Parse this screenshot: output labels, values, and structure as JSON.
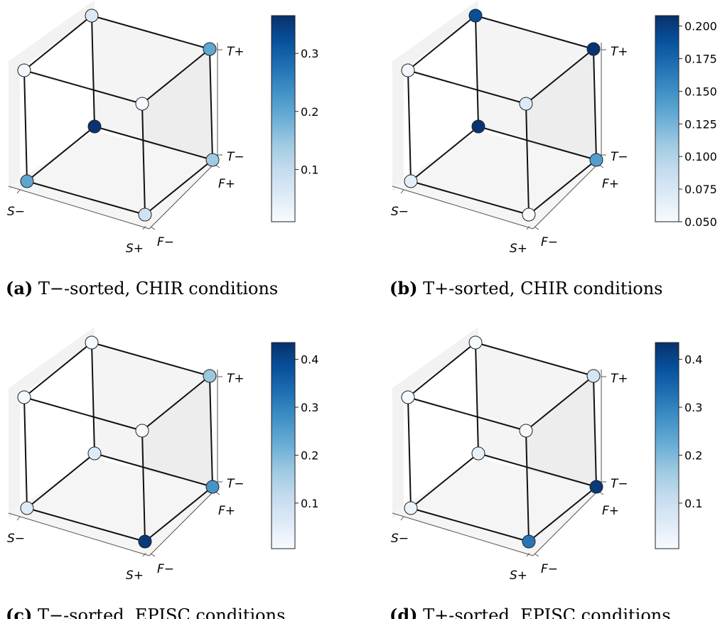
{
  "chart_data": [
    {
      "type": "scatter",
      "panel_label": "(a)",
      "caption": "T−-sorted, CHIR conditions",
      "axes": {
        "s": [
          "S−",
          "S+"
        ],
        "f": [
          "F−",
          "F+"
        ],
        "t": [
          "T−",
          "T+"
        ]
      },
      "colorbar": {
        "ticks": [
          0.1,
          0.2,
          0.3
        ],
        "range": [
          0.01,
          0.365
        ],
        "colormap": "Blues"
      },
      "points": [
        {
          "s": 0,
          "f": 0,
          "t": 0,
          "value": 0.2
        },
        {
          "s": 1,
          "f": 0,
          "t": 0,
          "value": 0.08
        },
        {
          "s": 0,
          "f": 1,
          "t": 0,
          "value": 0.36
        },
        {
          "s": 1,
          "f": 1,
          "t": 0,
          "value": 0.14
        },
        {
          "s": 0,
          "f": 0,
          "t": 1,
          "value": 0.02
        },
        {
          "s": 1,
          "f": 0,
          "t": 1,
          "value": 0.01
        },
        {
          "s": 0,
          "f": 1,
          "t": 1,
          "value": 0.06
        },
        {
          "s": 1,
          "f": 1,
          "t": 1,
          "value": 0.2
        }
      ]
    },
    {
      "type": "scatter",
      "panel_label": "(b)",
      "caption": "T+-sorted, CHIR conditions",
      "axes": {
        "s": [
          "S−",
          "S+"
        ],
        "f": [
          "F−",
          "F+"
        ],
        "t": [
          "T−",
          "T+"
        ]
      },
      "colorbar": {
        "ticks": [
          0.05,
          0.075,
          0.1,
          0.125,
          0.15,
          0.175,
          0.2
        ],
        "tick_labels": [
          "0.050",
          "0.075",
          "0.100",
          "0.125",
          "0.150",
          "0.175",
          "0.200"
        ],
        "range": [
          0.05,
          0.208
        ],
        "colormap": "Blues"
      },
      "points": [
        {
          "s": 0,
          "f": 0,
          "t": 0,
          "value": 0.065
        },
        {
          "s": 1,
          "f": 0,
          "t": 0,
          "value": 0.05
        },
        {
          "s": 0,
          "f": 1,
          "t": 0,
          "value": 0.205
        },
        {
          "s": 1,
          "f": 1,
          "t": 0,
          "value": 0.14
        },
        {
          "s": 0,
          "f": 0,
          "t": 1,
          "value": 0.055
        },
        {
          "s": 1,
          "f": 0,
          "t": 1,
          "value": 0.07
        },
        {
          "s": 0,
          "f": 1,
          "t": 1,
          "value": 0.19
        },
        {
          "s": 1,
          "f": 1,
          "t": 1,
          "value": 0.205
        }
      ]
    },
    {
      "type": "scatter",
      "panel_label": "(c)",
      "caption": "T−-sorted, EPISC conditions",
      "axes": {
        "s": [
          "S−",
          "S+"
        ],
        "f": [
          "F−",
          "F+"
        ],
        "t": [
          "T−",
          "T+"
        ]
      },
      "colorbar": {
        "ticks": [
          0.1,
          0.2,
          0.3,
          0.4
        ],
        "range": [
          0.005,
          0.435
        ],
        "colormap": "Blues"
      },
      "points": [
        {
          "s": 0,
          "f": 0,
          "t": 0,
          "value": 0.06
        },
        {
          "s": 1,
          "f": 0,
          "t": 0,
          "value": 0.42
        },
        {
          "s": 0,
          "f": 1,
          "t": 0,
          "value": 0.06
        },
        {
          "s": 1,
          "f": 1,
          "t": 0,
          "value": 0.27
        },
        {
          "s": 0,
          "f": 0,
          "t": 1,
          "value": 0.01
        },
        {
          "s": 1,
          "f": 0,
          "t": 1,
          "value": 0.01
        },
        {
          "s": 0,
          "f": 1,
          "t": 1,
          "value": 0.01
        },
        {
          "s": 1,
          "f": 1,
          "t": 1,
          "value": 0.17
        }
      ]
    },
    {
      "type": "scatter",
      "panel_label": "(d)",
      "caption": "T+-sorted, EPISC conditions",
      "axes": {
        "s": [
          "S−",
          "S+"
        ],
        "f": [
          "F−",
          "F+"
        ],
        "t": [
          "T−",
          "T+"
        ]
      },
      "colorbar": {
        "ticks": [
          0.1,
          0.2,
          0.3,
          0.4
        ],
        "range": [
          0.005,
          0.435
        ],
        "colormap": "Blues"
      },
      "points": [
        {
          "s": 0,
          "f": 0,
          "t": 0,
          "value": 0.03
        },
        {
          "s": 1,
          "f": 0,
          "t": 0,
          "value": 0.32
        },
        {
          "s": 0,
          "f": 1,
          "t": 0,
          "value": 0.04
        },
        {
          "s": 1,
          "f": 1,
          "t": 0,
          "value": 0.42
        },
        {
          "s": 0,
          "f": 0,
          "t": 1,
          "value": 0.01
        },
        {
          "s": 1,
          "f": 0,
          "t": 1,
          "value": 0.01
        },
        {
          "s": 0,
          "f": 1,
          "t": 1,
          "value": 0.01
        },
        {
          "s": 1,
          "f": 1,
          "t": 1,
          "value": 0.08
        }
      ]
    }
  ]
}
